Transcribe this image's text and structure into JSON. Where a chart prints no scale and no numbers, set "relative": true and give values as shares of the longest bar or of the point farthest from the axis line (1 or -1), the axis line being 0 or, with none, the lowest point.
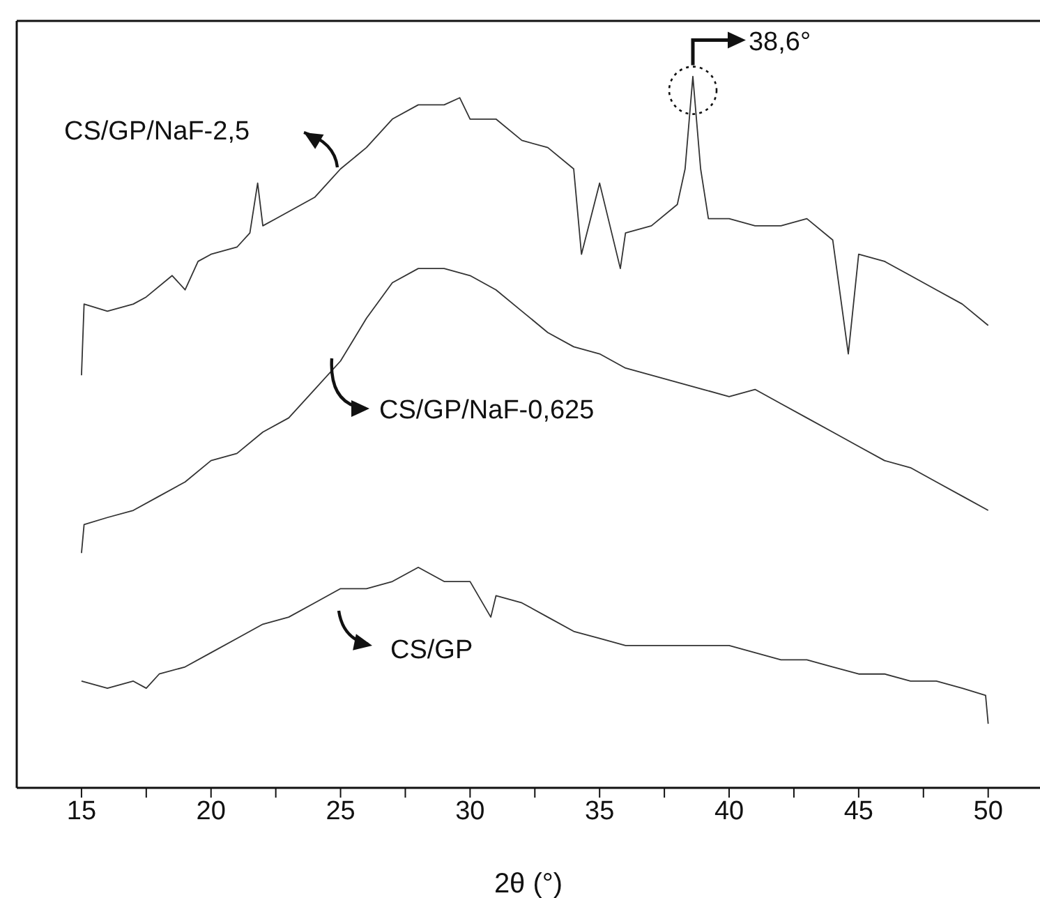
{
  "chart_data": {
    "type": "line",
    "relative": true,
    "xlabel": "2θ (°)",
    "xlim": [
      12.5,
      52
    ],
    "xticks": [
      15,
      {
        "value": 17.5,
        "label": null
      },
      20,
      {
        "value": 22.5,
        "label": null
      },
      25,
      {
        "value": 27.5,
        "label": null
      },
      30,
      {
        "value": 32.5,
        "label": null
      },
      35,
      {
        "value": 37.5,
        "label": null
      },
      40,
      {
        "value": 42.5,
        "label": null
      },
      45,
      {
        "value": 47.5,
        "label": null
      },
      50
    ],
    "marker": "none",
    "line_style": "solid",
    "tick_labels": "x",
    "annotations": [
      {
        "text": "38,6°",
        "x": 38.6,
        "y": 1.0
      }
    ],
    "series": [
      {
        "name": "CS/GP/NaF-2,5",
        "color": "#333333",
        "x": [
          15,
          15.1,
          16,
          17,
          17.5,
          18.5,
          19,
          19.5,
          20,
          21,
          21.5,
          21.8,
          22,
          22.5,
          23,
          24,
          25,
          26,
          27,
          28,
          29,
          29.6,
          30,
          31,
          32,
          33,
          34,
          34.3,
          35,
          35.8,
          36,
          37,
          38,
          38.3,
          38.6,
          38.9,
          39.2,
          40,
          41,
          42,
          43,
          44,
          44.6,
          45,
          46,
          47,
          48,
          49,
          50
        ],
        "values": [
          0.58,
          0.68,
          0.67,
          0.68,
          0.69,
          0.72,
          0.7,
          0.74,
          0.75,
          0.76,
          0.78,
          0.85,
          0.79,
          0.8,
          0.81,
          0.83,
          0.87,
          0.9,
          0.94,
          0.96,
          0.96,
          0.97,
          0.94,
          0.94,
          0.91,
          0.9,
          0.87,
          0.75,
          0.85,
          0.73,
          0.78,
          0.79,
          0.82,
          0.87,
          1.0,
          0.87,
          0.8,
          0.8,
          0.79,
          0.79,
          0.8,
          0.77,
          0.61,
          0.75,
          0.74,
          0.72,
          0.7,
          0.68,
          0.65
        ]
      },
      {
        "name": "CS/GP/NaF-0,625",
        "color": "#333333",
        "x": [
          15,
          15.1,
          16,
          17,
          18,
          19,
          20,
          21,
          22,
          23,
          24,
          25,
          26,
          27,
          28,
          29,
          30,
          31,
          32,
          33,
          34,
          35,
          36,
          37,
          38,
          39,
          40,
          41,
          42,
          43,
          44,
          45,
          46,
          47,
          48,
          49,
          50
        ],
        "values": [
          0.33,
          0.37,
          0.38,
          0.39,
          0.41,
          0.43,
          0.46,
          0.47,
          0.5,
          0.52,
          0.56,
          0.6,
          0.66,
          0.71,
          0.73,
          0.73,
          0.72,
          0.7,
          0.67,
          0.64,
          0.62,
          0.61,
          0.59,
          0.58,
          0.57,
          0.56,
          0.55,
          0.56,
          0.54,
          0.52,
          0.5,
          0.48,
          0.46,
          0.45,
          0.43,
          0.41,
          0.39
        ]
      },
      {
        "name": "CS/GP",
        "color": "#333333",
        "x": [
          15,
          16,
          17,
          17.5,
          18,
          19,
          20,
          21,
          22,
          23,
          24,
          25,
          26,
          27,
          28,
          29,
          30,
          30.8,
          31,
          32,
          33,
          34,
          35,
          36,
          37,
          38,
          39,
          40,
          41,
          42,
          43,
          44,
          45,
          46,
          47,
          48,
          49,
          49.9,
          50
        ],
        "values": [
          0.15,
          0.14,
          0.15,
          0.14,
          0.16,
          0.17,
          0.19,
          0.21,
          0.23,
          0.24,
          0.26,
          0.28,
          0.28,
          0.29,
          0.31,
          0.29,
          0.29,
          0.24,
          0.27,
          0.26,
          0.24,
          0.22,
          0.21,
          0.2,
          0.2,
          0.2,
          0.2,
          0.2,
          0.19,
          0.18,
          0.18,
          0.17,
          0.16,
          0.16,
          0.15,
          0.15,
          0.14,
          0.13,
          0.09
        ]
      }
    ]
  }
}
